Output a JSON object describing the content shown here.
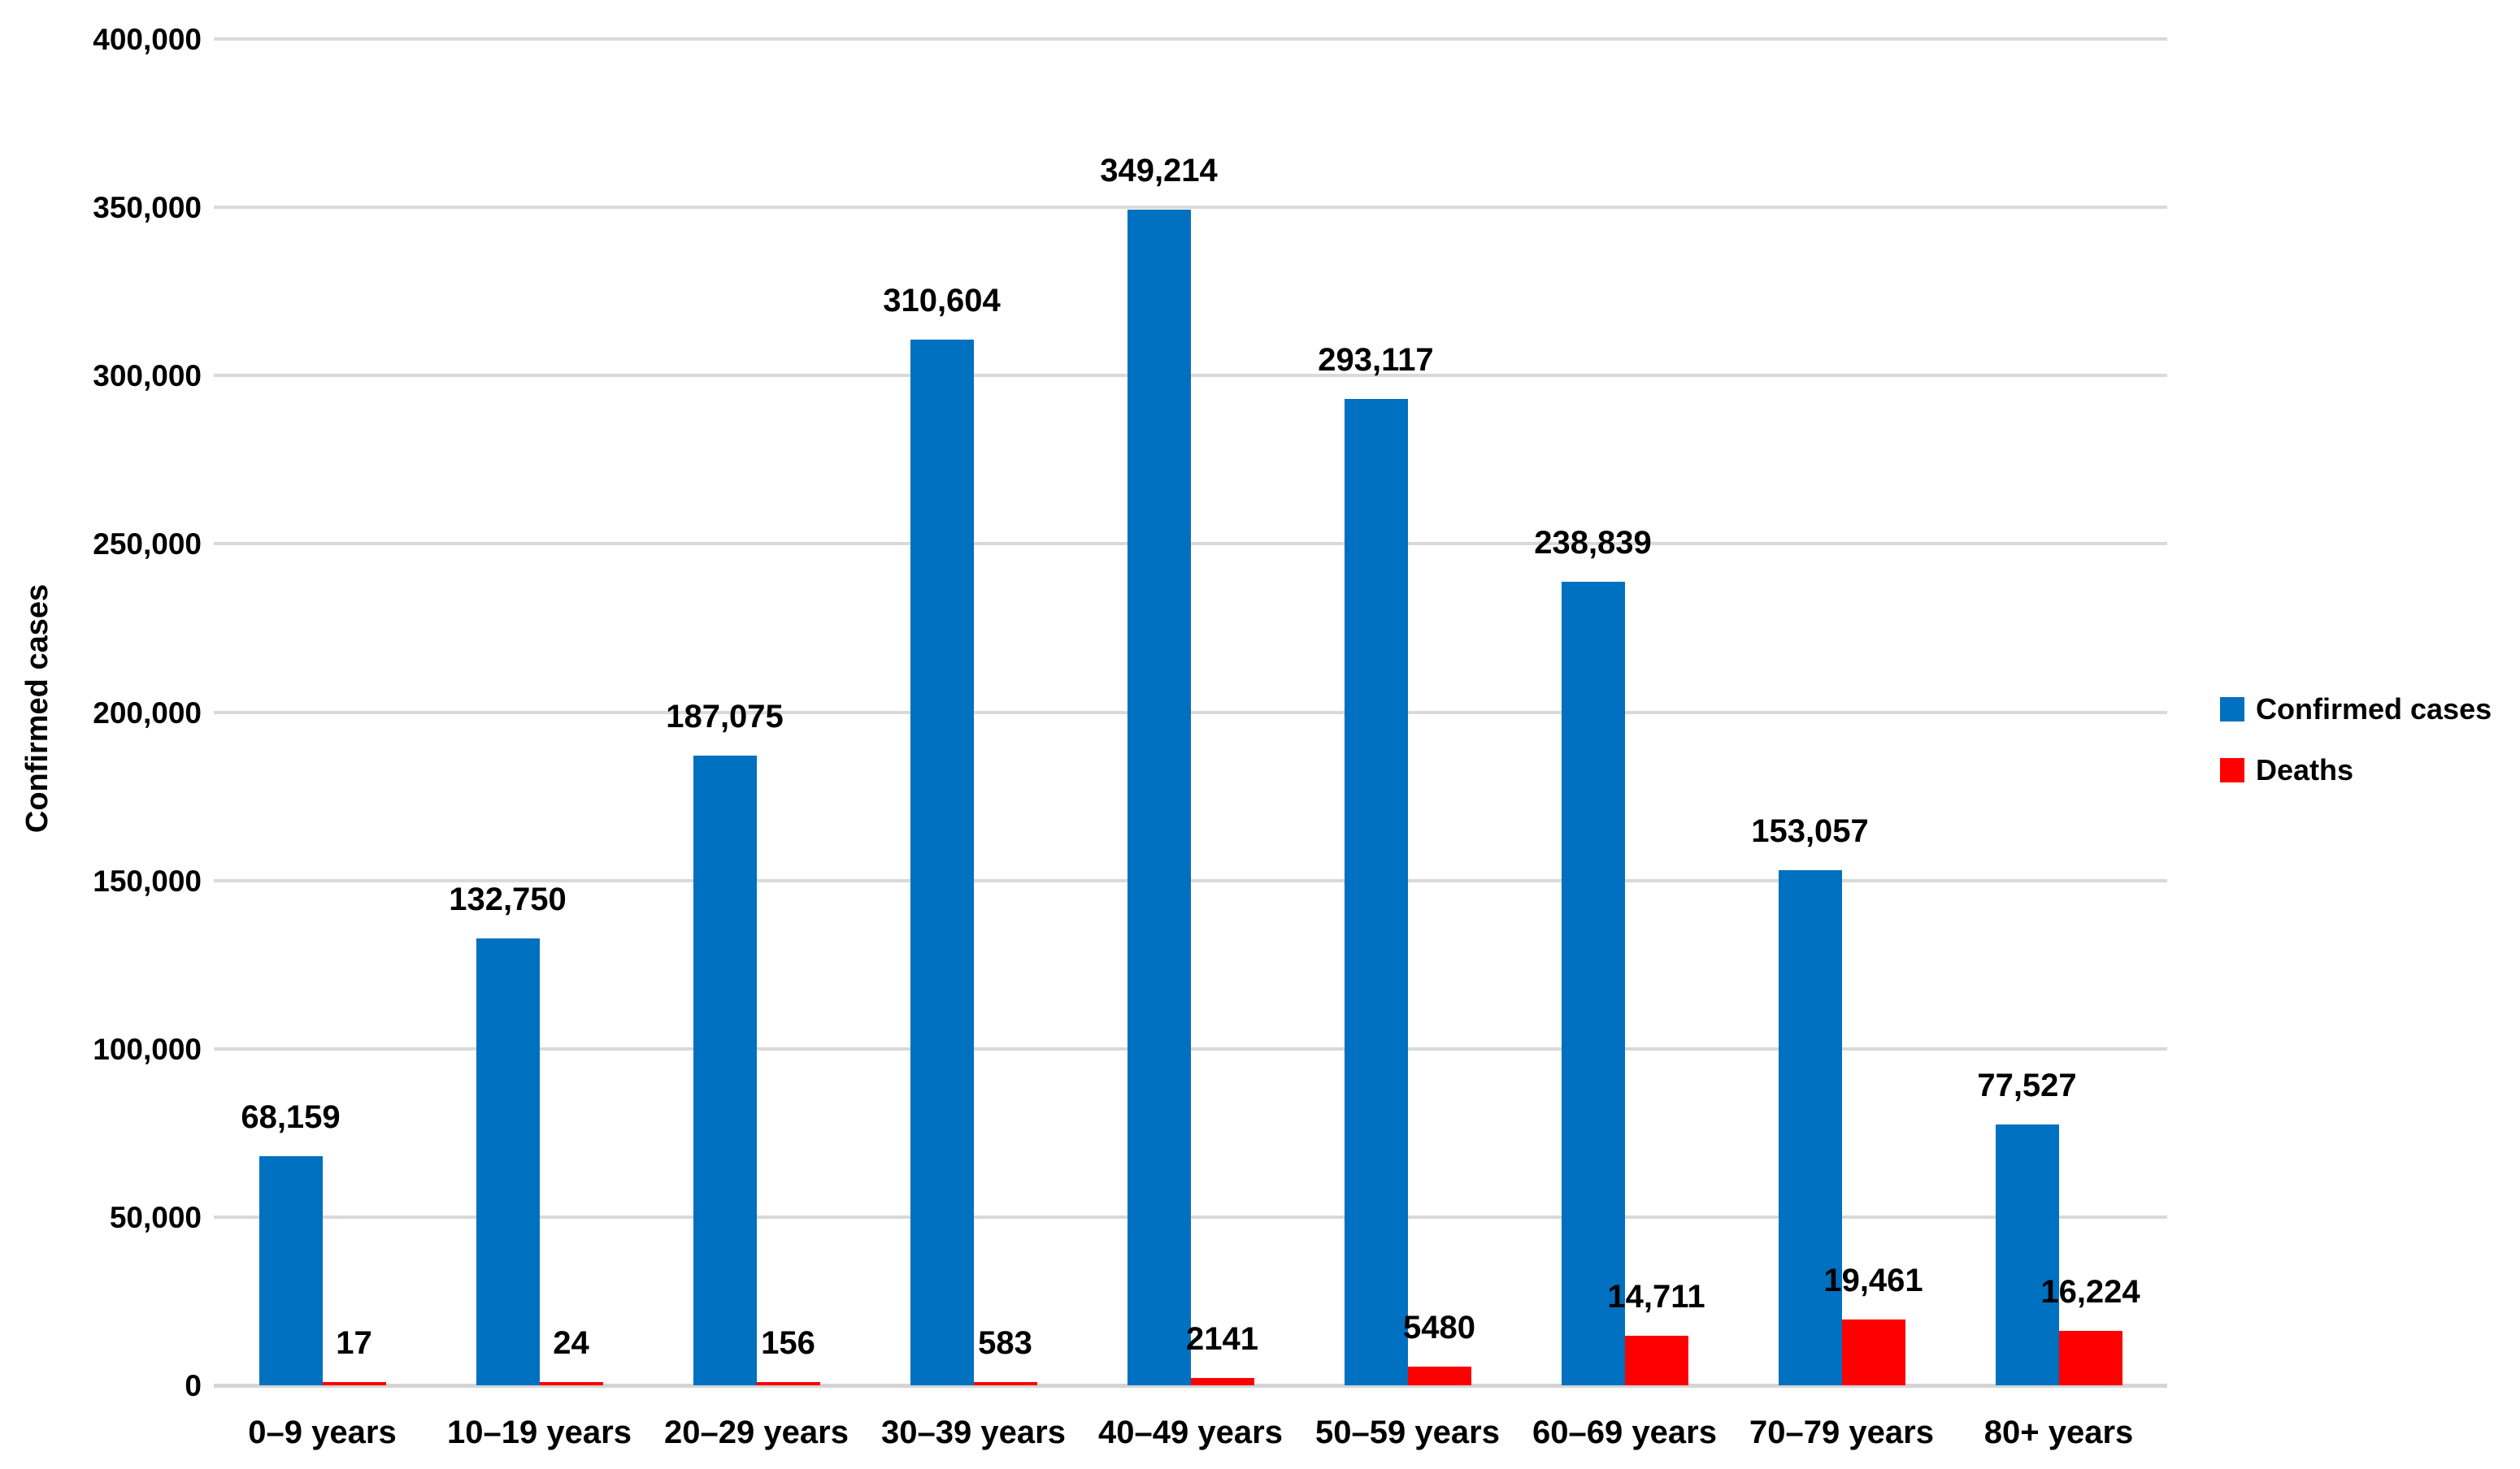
{
  "chart_data": {
    "type": "bar",
    "title": "",
    "xlabel": "",
    "ylabel": "Confirmed cases",
    "grid": "horizontal",
    "legend_position": "right",
    "categories": [
      "0–9 years",
      "10–19 years",
      "20–29 years",
      "30–39 years",
      "40–49 years",
      "50–59 years",
      "60–69 years",
      "70–79 years",
      "80+ years"
    ],
    "series": [
      {
        "name": "Confirmed cases",
        "color": "#0070C0",
        "values": [
          68159,
          132750,
          187075,
          310604,
          349214,
          293117,
          238839,
          153057,
          77527
        ],
        "labels": [
          "68,159",
          "132,750",
          "187,075",
          "310,604",
          "349,214",
          "293,117",
          "238,839",
          "153,057",
          "77,527"
        ]
      },
      {
        "name": "Deaths",
        "color": "#FF0000",
        "values": [
          17,
          24,
          156,
          583,
          2141,
          5480,
          14711,
          19461,
          16224
        ],
        "labels": [
          "17",
          "24",
          "156",
          "583",
          "2141",
          "5480",
          "14,711",
          "19,461",
          "16,224"
        ]
      }
    ],
    "y_axis": {
      "min": 0,
      "max": 400000,
      "step": 50000,
      "tick_labels": [
        "0",
        "50,000",
        "100,000",
        "150,000",
        "200,000",
        "250,000",
        "300,000",
        "350,000",
        "400,000"
      ]
    },
    "legend": {
      "entries": [
        {
          "label": "Confirmed cases",
          "color": "#0070C0"
        },
        {
          "label": "Deaths",
          "color": "#FF0000"
        }
      ]
    },
    "colors": {
      "gridline": "#D9D9D9",
      "axis_line": "#D4D4D4",
      "text": "#000000",
      "background": "#FFFFFF"
    }
  }
}
